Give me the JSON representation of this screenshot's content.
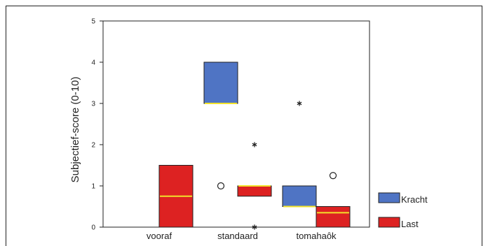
{
  "chart_data": {
    "type": "boxplot",
    "title": "",
    "xlabel": "",
    "ylabel": "Subjectief-score (0-10)",
    "ylim": [
      0,
      5
    ],
    "yticks": [
      "0",
      "1",
      "2",
      "3",
      "4",
      "5"
    ],
    "categories": [
      "vooraf",
      "standaard",
      "tomahaôk"
    ],
    "legend_placement": "bottom-right",
    "series": [
      {
        "name": "Kracht",
        "color": "#4f74c4",
        "boxes": [
          null,
          {
            "q1": 3.0,
            "median": 3.0,
            "q3": 4.0
          },
          {
            "q1": 0.5,
            "median": 0.5,
            "q3": 1.0
          }
        ],
        "outliers": [
          {
            "category": "standaard",
            "value": 1.0,
            "marker": "circle"
          },
          {
            "category": "tomahaôk",
            "value": 3.0,
            "marker": "star"
          }
        ]
      },
      {
        "name": "Last",
        "color": "#dd2222",
        "boxes": [
          {
            "q1": 0.0,
            "median": 0.75,
            "q3": 1.5
          },
          {
            "q1": 0.75,
            "median": 1.0,
            "q3": 1.0
          },
          {
            "q1": 0.0,
            "median": 0.35,
            "q3": 0.5
          }
        ],
        "outliers": [
          {
            "category": "standaard",
            "value": 2.0,
            "marker": "star"
          },
          {
            "category": "standaard",
            "value": 0.0,
            "marker": "star"
          },
          {
            "category": "tomahaôk",
            "value": 1.25,
            "marker": "circle"
          }
        ]
      }
    ],
    "median_color": "#f2e22a"
  }
}
